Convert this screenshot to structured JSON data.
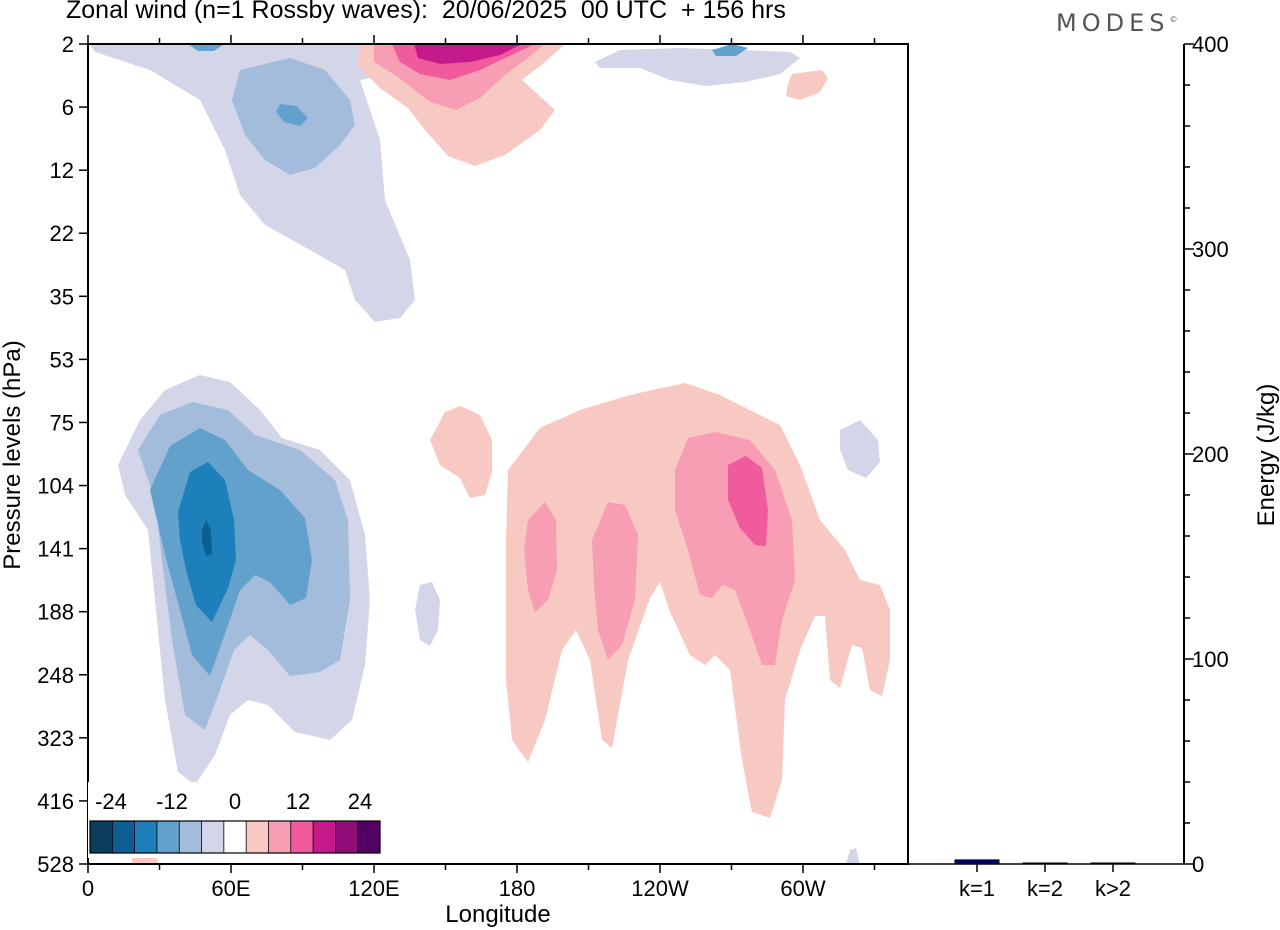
{
  "title": "Zonal wind (n=1 Rossby waves):  20/06/2025  00 UTC  + 156 hrs",
  "logo": "MODES",
  "chart_data": [
    {
      "type": "heatmap",
      "title": "Zonal wind (n=1 Rossby waves):  20/06/2025  00 UTC  + 156 hrs",
      "xlabel": "Longitude",
      "ylabel": "Pressure levels (hPa)",
      "x_ticks": [
        "0",
        "60E",
        "120E",
        "180",
        "120W",
        "60W"
      ],
      "y_ticks": [
        "2",
        "6",
        "12",
        "22",
        "35",
        "53",
        "75",
        "104",
        "141",
        "188",
        "248",
        "323",
        "416",
        "528"
      ],
      "colorbar": {
        "labels": [
          "-24",
          "-12",
          "0",
          "12",
          "24"
        ],
        "levels": [
          -30,
          -25,
          -20,
          -15,
          -10,
          -5,
          5,
          10,
          15,
          20,
          25,
          30
        ],
        "colors": [
          "#0c3d5c",
          "#0b5f93",
          "#1d80bb",
          "#62a1cc",
          "#a3bcdb",
          "#d3d6e8",
          "#ffffff",
          "#f8c9c2",
          "#f79db4",
          "#ef5b9c",
          "#c51b8a",
          "#8f0e78",
          "#520062"
        ]
      },
      "features": [
        {
          "name": "negative anomaly, upper levels 0-120E",
          "min": -15,
          "lon_range": [
            20,
            130
          ],
          "p_range": [
            2,
            35
          ]
        },
        {
          "name": "positive anomaly, upper levels 120E-180",
          "max": 25,
          "lon_range": [
            120,
            200
          ],
          "p_range": [
            2,
            12
          ]
        },
        {
          "name": "negative anomaly, lower levels 20E-110E",
          "min": -25,
          "lon_range": [
            15,
            115
          ],
          "p_range": [
            60,
            416
          ]
        },
        {
          "name": "positive anomaly, 150E-60W",
          "max": 20,
          "lon_range": [
            150,
            330
          ],
          "p_range": [
            75,
            416
          ]
        }
      ]
    },
    {
      "type": "bar",
      "categories": [
        "k=1",
        "k=2",
        "k>2"
      ],
      "values": [
        2,
        0.5,
        0.5
      ],
      "ylabel": "Energy (J/kg)",
      "ylim": [
        0,
        400
      ],
      "y_ticks": [
        "0",
        "100",
        "200",
        "300",
        "400"
      ],
      "bar_color": "#00007a"
    }
  ]
}
